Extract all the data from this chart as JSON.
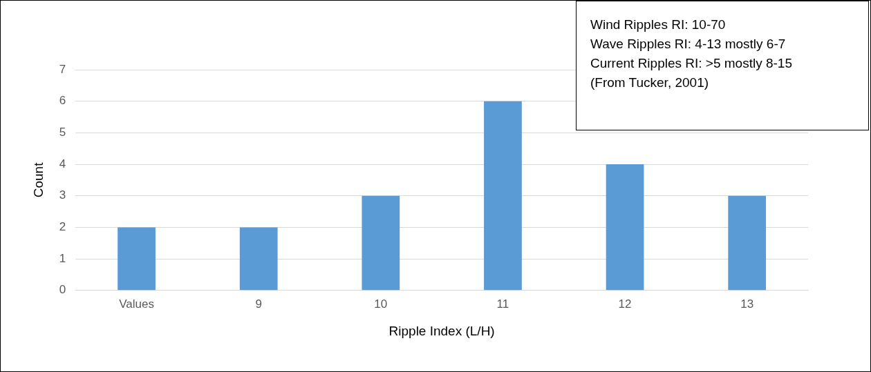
{
  "chart_data": {
    "type": "bar",
    "categories": [
      "Values",
      "9",
      "10",
      "11",
      "12",
      "13"
    ],
    "values": [
      2,
      2,
      3,
      6,
      4,
      3
    ],
    "color": "#5b9bd5",
    "xlabel": "Ripple Index (L/H)",
    "ylabel": "Count",
    "ylim": [
      0,
      7
    ],
    "yticks": [
      0,
      1,
      2,
      3,
      4,
      5,
      6,
      7
    ],
    "grid": "y",
    "legend": false,
    "annotations": [
      "Wind Ripples RI: 10-70",
      "Wave Ripples RI: 4-13 mostly 6-7",
      "Current Ripples RI: >5 mostly 8-15",
      "(From Tucker, 2001)"
    ]
  }
}
